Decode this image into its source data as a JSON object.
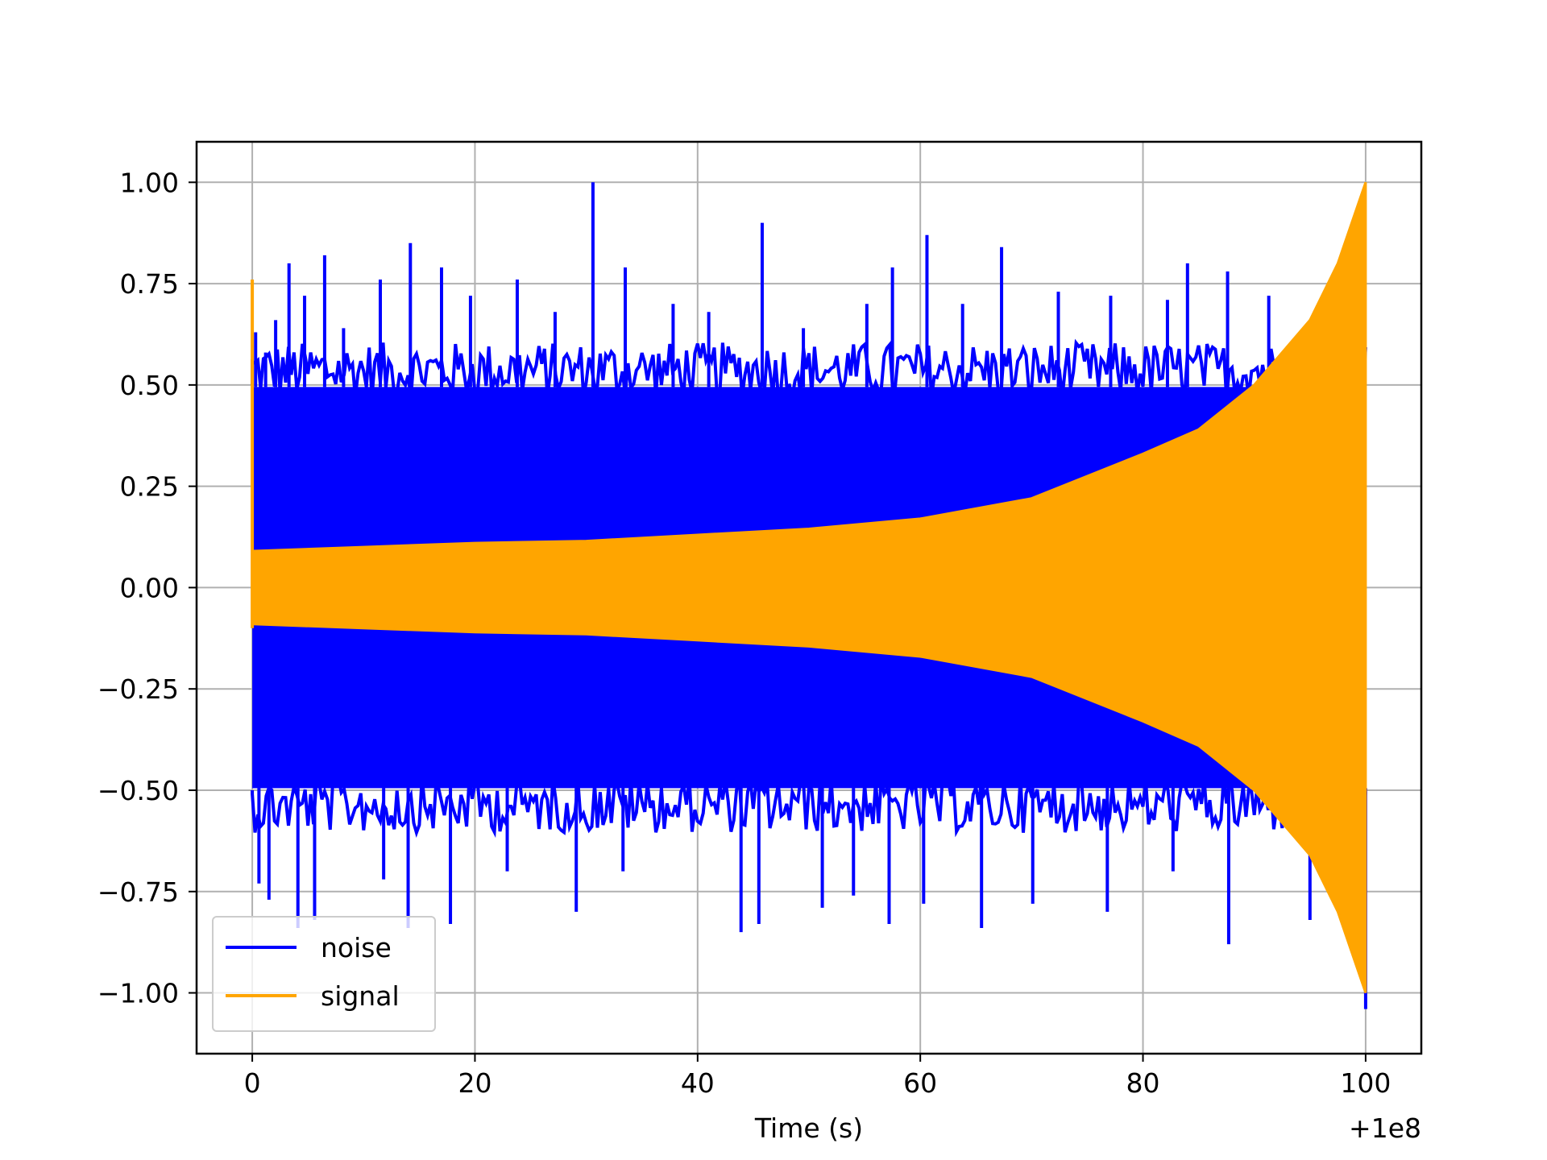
{
  "chart_data": {
    "type": "line",
    "title": "",
    "xlabel": "Time (s)",
    "ylabel": "",
    "x_offset_label": "+1e8",
    "xlim": [
      -5,
      105
    ],
    "ylim": [
      -1.15,
      1.1
    ],
    "grid": true,
    "legend_position": "lower-left",
    "x_ticks": [
      0,
      20,
      40,
      60,
      80,
      100
    ],
    "x_tick_labels": [
      "0",
      "20",
      "40",
      "60",
      "80",
      "100"
    ],
    "y_ticks": [
      1.0,
      0.75,
      0.5,
      0.25,
      0.0,
      -0.25,
      -0.5,
      -0.75,
      -1.0
    ],
    "y_tick_labels": [
      "1.00",
      "0.75",
      "0.50",
      "0.25",
      "0.00",
      "−0.25",
      "−0.50",
      "−0.75",
      "−1.00"
    ],
    "series": [
      {
        "name": "noise",
        "color": "#0000ff",
        "description_values": {
          "typical_upper": 0.55,
          "typical_lower": -0.55,
          "x_start": 0,
          "x_end": 100
        },
        "spikes": [
          {
            "x": 0.3,
            "y": 0.63
          },
          {
            "x": 1.2,
            "y": 0.58
          },
          {
            "x": 2.1,
            "y": 0.66
          },
          {
            "x": 3.3,
            "y": 0.8
          },
          {
            "x": 4.7,
            "y": 0.72
          },
          {
            "x": 6.5,
            "y": 0.82
          },
          {
            "x": 8.2,
            "y": 0.64
          },
          {
            "x": 11.5,
            "y": 0.76
          },
          {
            "x": 14.2,
            "y": 0.85
          },
          {
            "x": 17.0,
            "y": 0.79
          },
          {
            "x": 19.6,
            "y": 0.72
          },
          {
            "x": 23.8,
            "y": 0.76
          },
          {
            "x": 27.2,
            "y": 0.68
          },
          {
            "x": 30.6,
            "y": 1.0
          },
          {
            "x": 33.5,
            "y": 0.79
          },
          {
            "x": 37.8,
            "y": 0.7
          },
          {
            "x": 41.0,
            "y": 0.68
          },
          {
            "x": 45.8,
            "y": 0.9
          },
          {
            "x": 49.5,
            "y": 0.64
          },
          {
            "x": 55.2,
            "y": 0.7
          },
          {
            "x": 57.5,
            "y": 0.79
          },
          {
            "x": 60.6,
            "y": 0.87
          },
          {
            "x": 63.8,
            "y": 0.7
          },
          {
            "x": 67.3,
            "y": 0.84
          },
          {
            "x": 72.4,
            "y": 0.73
          },
          {
            "x": 77.1,
            "y": 0.72
          },
          {
            "x": 82.2,
            "y": 0.71
          },
          {
            "x": 84.0,
            "y": 0.8
          },
          {
            "x": 87.6,
            "y": 0.78
          },
          {
            "x": 91.3,
            "y": 0.72
          },
          {
            "x": 0.6,
            "y": -0.73
          },
          {
            "x": 1.5,
            "y": -0.77
          },
          {
            "x": 4.1,
            "y": -0.84
          },
          {
            "x": 5.6,
            "y": -0.82
          },
          {
            "x": 11.8,
            "y": -0.72
          },
          {
            "x": 14.0,
            "y": -0.84
          },
          {
            "x": 17.8,
            "y": -0.83
          },
          {
            "x": 22.9,
            "y": -0.7
          },
          {
            "x": 29.1,
            "y": -0.8
          },
          {
            "x": 33.3,
            "y": -0.7
          },
          {
            "x": 43.9,
            "y": -0.85
          },
          {
            "x": 45.5,
            "y": -0.83
          },
          {
            "x": 51.2,
            "y": -0.79
          },
          {
            "x": 54.0,
            "y": -0.76
          },
          {
            "x": 57.2,
            "y": -0.83
          },
          {
            "x": 60.3,
            "y": -0.78
          },
          {
            "x": 65.5,
            "y": -0.84
          },
          {
            "x": 70.1,
            "y": -0.78
          },
          {
            "x": 76.8,
            "y": -0.8
          },
          {
            "x": 82.7,
            "y": -0.7
          },
          {
            "x": 87.7,
            "y": -0.88
          },
          {
            "x": 95.0,
            "y": -0.82
          },
          {
            "x": 100,
            "y": -1.04
          }
        ]
      },
      {
        "name": "signal",
        "color": "#ffa500",
        "envelope": [
          {
            "x": 0,
            "y": 0.09
          },
          {
            "x": 10,
            "y": 0.1
          },
          {
            "x": 20,
            "y": 0.11
          },
          {
            "x": 30,
            "y": 0.115
          },
          {
            "x": 40,
            "y": 0.13
          },
          {
            "x": 50,
            "y": 0.145
          },
          {
            "x": 60,
            "y": 0.17
          },
          {
            "x": 70,
            "y": 0.22
          },
          {
            "x": 80,
            "y": 0.33
          },
          {
            "x": 85,
            "y": 0.39
          },
          {
            "x": 90,
            "y": 0.5
          },
          {
            "x": 95,
            "y": 0.66
          },
          {
            "x": 97.5,
            "y": 0.8
          },
          {
            "x": 100,
            "y": 1.0
          }
        ],
        "start_spike": 0.76
      }
    ]
  }
}
